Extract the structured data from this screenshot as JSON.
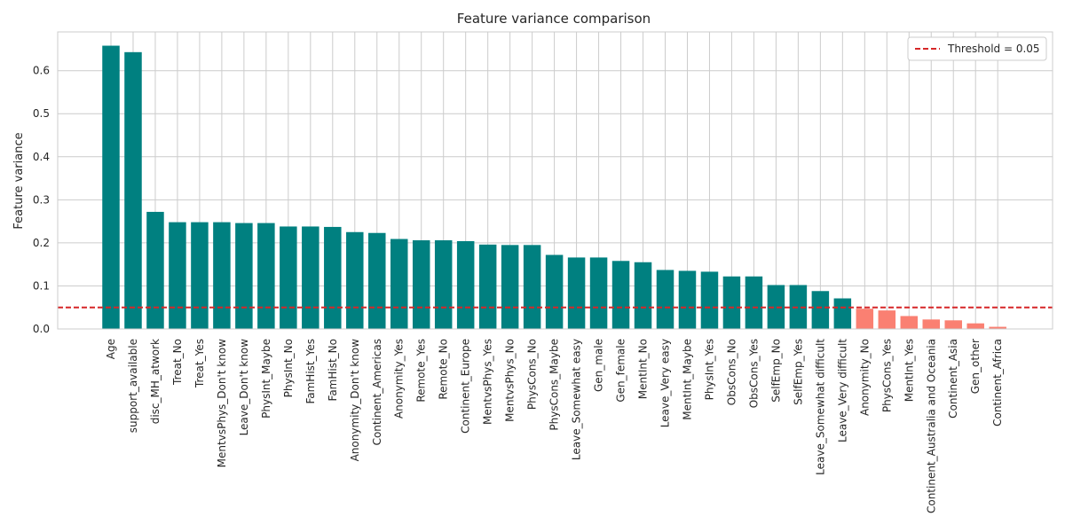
{
  "chart_data": {
    "type": "bar",
    "title": "Feature variance comparison",
    "xlabel": "",
    "ylabel": "Feature variance",
    "ylim": [
      0,
      0.69
    ],
    "yticks": [
      0.0,
      0.1,
      0.2,
      0.3,
      0.4,
      0.5,
      0.6
    ],
    "ytick_labels": [
      "0.0",
      "0.1",
      "0.2",
      "0.3",
      "0.4",
      "0.5",
      "0.6"
    ],
    "grid": true,
    "legend_position": "top-right",
    "threshold": {
      "value": 0.05,
      "label": "Threshold = 0.05",
      "color": "#d62728",
      "style": "dashed"
    },
    "colors": {
      "above_threshold": "#008080",
      "below_threshold": "#fa8072"
    },
    "categories": [
      "Age",
      "support_available",
      "disc_MH_atwork",
      "Treat_No",
      "Treat_Yes",
      "MentvsPhys_Don't know",
      "Leave_Don't know",
      "PhysInt_Maybe",
      "PhysInt_No",
      "FamHist_Yes",
      "FamHist_No",
      "Anonymity_Don't know",
      "Continent_Americas",
      "Anonymity_Yes",
      "Remote_Yes",
      "Remote_No",
      "Continent_Europe",
      "MentvsPhys_Yes",
      "MentvsPhys_No",
      "PhysCons_No",
      "PhysCons_Maybe",
      "Leave_Somewhat easy",
      "Gen_male",
      "Gen_female",
      "MentInt_No",
      "Leave_Very easy",
      "MentInt_Maybe",
      "PhysInt_Yes",
      "ObsCons_No",
      "ObsCons_Yes",
      "SelfEmp_No",
      "SelfEmp_Yes",
      "Leave_Somewhat difficult",
      "Leave_Very difficult",
      "Anonymity_No",
      "PhysCons_Yes",
      "MentInt_Yes",
      "Continent_Australia and Oceania",
      "Continent_Asia",
      "Gen_other",
      "Continent_Africa"
    ],
    "values": [
      0.658,
      0.643,
      0.272,
      0.248,
      0.248,
      0.248,
      0.246,
      0.246,
      0.238,
      0.238,
      0.237,
      0.225,
      0.223,
      0.209,
      0.206,
      0.206,
      0.204,
      0.196,
      0.195,
      0.195,
      0.172,
      0.166,
      0.166,
      0.158,
      0.155,
      0.137,
      0.135,
      0.133,
      0.122,
      0.122,
      0.102,
      0.102,
      0.088,
      0.071,
      0.047,
      0.043,
      0.03,
      0.022,
      0.02,
      0.013,
      0.005
    ]
  }
}
